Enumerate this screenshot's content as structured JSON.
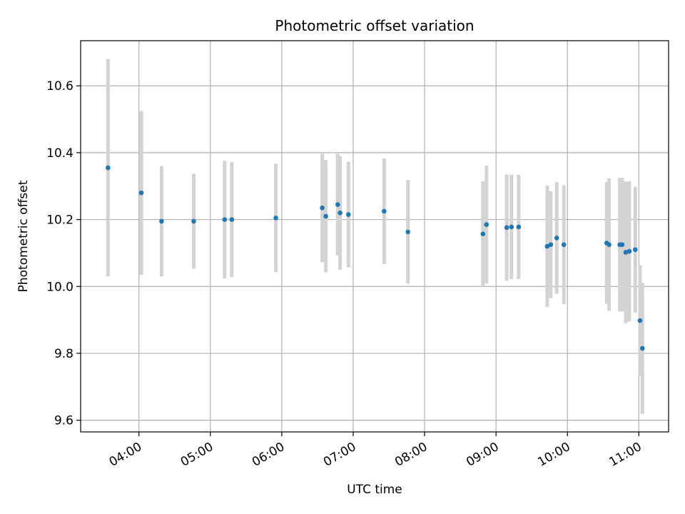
{
  "chart_data": {
    "type": "scatter",
    "title": "Photometric offset variation",
    "xlabel": "UTC time",
    "ylabel": "Photometric offset",
    "x_ticks": [
      "04:00",
      "05:00",
      "06:00",
      "07:00",
      "08:00",
      "09:00",
      "10:00",
      "11:00"
    ],
    "y_ticks": [
      "9.6",
      "9.8",
      "10.0",
      "10.2",
      "10.4",
      "10.6"
    ],
    "xlim": [
      "03:11",
      "11:25"
    ],
    "ylim": [
      9.565,
      10.735
    ],
    "grid": true,
    "colors": {
      "point": "#1f77b4",
      "errorbar": "#d3d3d3",
      "grid": "#b0b0b0"
    },
    "points": [
      {
        "x": "03:34",
        "y": 10.355,
        "yerr": 0.325
      },
      {
        "x": "04:02",
        "y": 10.28,
        "yerr": 0.245
      },
      {
        "x": "04:19",
        "y": 10.195,
        "yerr": 0.165
      },
      {
        "x": "04:46",
        "y": 10.195,
        "yerr": 0.142
      },
      {
        "x": "05:12",
        "y": 10.2,
        "yerr": 0.176
      },
      {
        "x": "05:18",
        "y": 10.2,
        "yerr": 0.172
      },
      {
        "x": "05:55",
        "y": 10.205,
        "yerr": 0.162
      },
      {
        "x": "06:34",
        "y": 10.235,
        "yerr": 0.162
      },
      {
        "x": "06:37",
        "y": 10.21,
        "yerr": 0.168
      },
      {
        "x": "06:47",
        "y": 10.245,
        "yerr": 0.152
      },
      {
        "x": "06:49",
        "y": 10.22,
        "yerr": 0.17
      },
      {
        "x": "06:56",
        "y": 10.215,
        "yerr": 0.158
      },
      {
        "x": "07:26",
        "y": 10.225,
        "yerr": 0.158
      },
      {
        "x": "07:46",
        "y": 10.163,
        "yerr": 0.155
      },
      {
        "x": "08:49",
        "y": 10.157,
        "yerr": 0.157
      },
      {
        "x": "08:52",
        "y": 10.185,
        "yerr": 0.177
      },
      {
        "x": "09:09",
        "y": 10.176,
        "yerr": 0.159
      },
      {
        "x": "09:13",
        "y": 10.178,
        "yerr": 0.156
      },
      {
        "x": "09:19",
        "y": 10.178,
        "yerr": 0.156
      },
      {
        "x": "09:43",
        "y": 10.12,
        "yerr": 0.182
      },
      {
        "x": "09:46",
        "y": 10.125,
        "yerr": 0.16
      },
      {
        "x": "09:51",
        "y": 10.145,
        "yerr": 0.167
      },
      {
        "x": "09:57",
        "y": 10.125,
        "yerr": 0.178
      },
      {
        "x": "10:33",
        "y": 10.13,
        "yerr": 0.182
      },
      {
        "x": "10:35",
        "y": 10.125,
        "yerr": 0.198
      },
      {
        "x": "10:44",
        "y": 10.125,
        "yerr": 0.2
      },
      {
        "x": "10:46",
        "y": 10.125,
        "yerr": 0.2
      },
      {
        "x": "10:49",
        "y": 10.102,
        "yerr": 0.212
      },
      {
        "x": "10:52",
        "y": 10.105,
        "yerr": 0.21
      },
      {
        "x": "10:57",
        "y": 10.11,
        "yerr": 0.188
      },
      {
        "x": "11:01",
        "y": 9.898,
        "yerr": 0.166
      },
      {
        "x": "11:03",
        "y": 9.815,
        "yerr": 0.196
      }
    ]
  }
}
